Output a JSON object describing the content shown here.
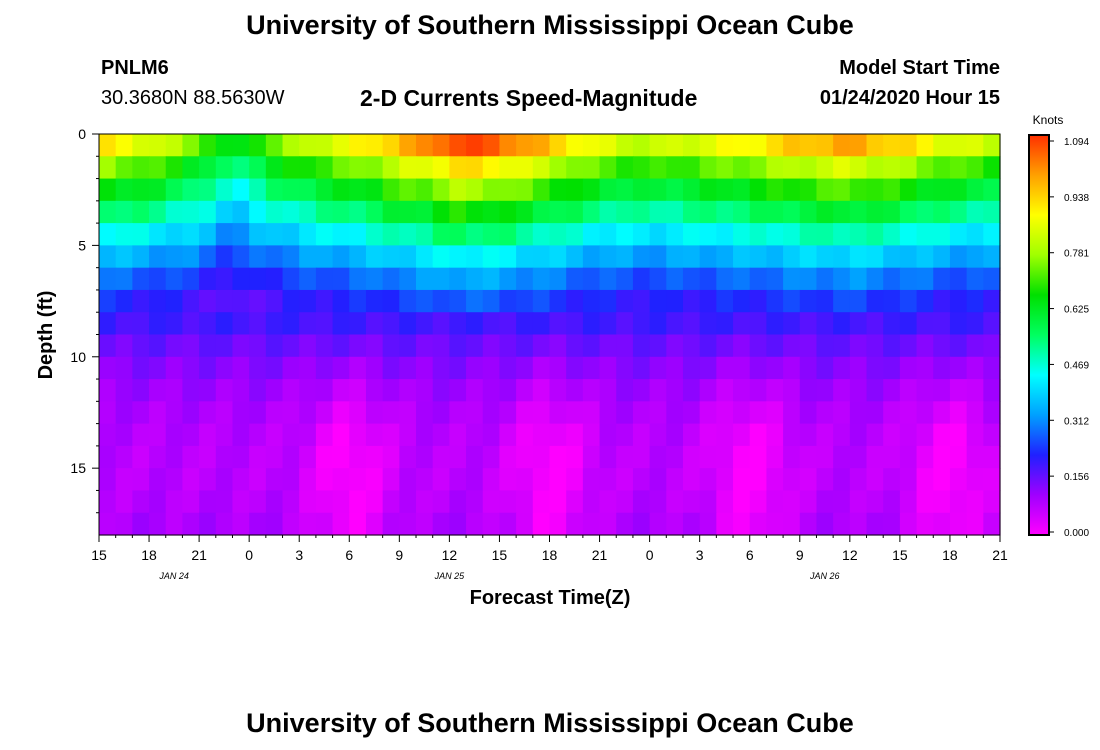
{
  "header": {
    "main_title": "University of Southern Mississippi Ocean Cube",
    "station_id": "PNLM6",
    "station_coords": "30.3680N 88.5630W",
    "chart_title": "2-D Currents Speed-Magnitude",
    "run_label": "Model Start Time",
    "run_value": "01/24/2020 Hour 15"
  },
  "footer": {
    "title": "University of Southern Mississippi Ocean Cube"
  },
  "chart_data": {
    "type": "heatmap",
    "title": "2-D Currents Speed-Magnitude",
    "xlabel": "Forecast Time(Z)",
    "ylabel": "Depth (ft)",
    "x_ticks": [
      "15",
      "18",
      "21",
      "0",
      "3",
      "6",
      "9",
      "12",
      "15",
      "18",
      "21",
      "0",
      "3",
      "6",
      "9",
      "12",
      "15",
      "18",
      "21"
    ],
    "x_tick_hours": [
      0,
      3,
      6,
      9,
      12,
      15,
      18,
      21,
      24,
      27,
      30,
      33,
      36,
      39,
      42,
      45,
      48,
      51,
      54
    ],
    "x_range_hours": [
      0,
      54
    ],
    "date_labels": [
      {
        "text": "JAN 24",
        "hour": 4.5
      },
      {
        "text": "JAN 25",
        "hour": 21
      },
      {
        "text": "JAN 26",
        "hour": 43.5
      }
    ],
    "y_ticks": [
      0,
      5,
      10,
      15
    ],
    "y_range_ft": [
      0,
      18
    ],
    "y_inverted": true,
    "colorbar": {
      "units": "Knots",
      "min": 0.0,
      "max": 1.094,
      "ticks": [
        "1.094",
        "0.938",
        "0.781",
        "0.625",
        "0.469",
        "0.312",
        "0.156",
        "0.000"
      ],
      "colormap": [
        "#ff00ff",
        "#a000ff",
        "#2020ff",
        "#00a0ff",
        "#00ffff",
        "#00ff60",
        "#00e000",
        "#a0ff00",
        "#ffff00",
        "#ffa000",
        "#ff3000"
      ]
    },
    "description": "Speed magnitude (knots) vs forecast hour (0 = 01/24 15Z) and depth (ft). Surface speeds 0.7-1.0 kt, decaying to 0.05-0.2 kt near bottom; near-bottom minima periodic with ~10-12 h spacing.",
    "surface_speed_by_hour": [
      [
        0,
        0.88
      ],
      [
        3,
        0.82
      ],
      [
        6,
        0.72
      ],
      [
        8,
        0.58
      ],
      [
        10,
        0.7
      ],
      [
        13,
        0.8
      ],
      [
        16,
        0.86
      ],
      [
        18,
        0.94
      ],
      [
        20,
        0.98
      ],
      [
        21,
        1.06
      ],
      [
        24,
        1.02
      ],
      [
        27,
        0.92
      ],
      [
        30,
        0.82
      ],
      [
        33,
        0.78
      ],
      [
        36,
        0.82
      ],
      [
        39,
        0.86
      ],
      [
        42,
        0.92
      ],
      [
        45,
        0.96
      ],
      [
        48,
        0.9
      ],
      [
        51,
        0.82
      ],
      [
        54,
        0.78
      ]
    ],
    "depth_profile_knots": [
      [
        0,
        1.0
      ],
      [
        1,
        0.84
      ],
      [
        2,
        0.72
      ],
      [
        3,
        0.62
      ],
      [
        4,
        0.52
      ],
      [
        5,
        0.42
      ],
      [
        6,
        0.33
      ],
      [
        7,
        0.26
      ],
      [
        8,
        0.21
      ],
      [
        9,
        0.17
      ],
      [
        10,
        0.13
      ],
      [
        12,
        0.07
      ],
      [
        14,
        0.03
      ],
      [
        16,
        0.03
      ],
      [
        18,
        0.05
      ]
    ],
    "bottom_minimum_hours": [
      15,
      27,
      39,
      51
    ]
  }
}
